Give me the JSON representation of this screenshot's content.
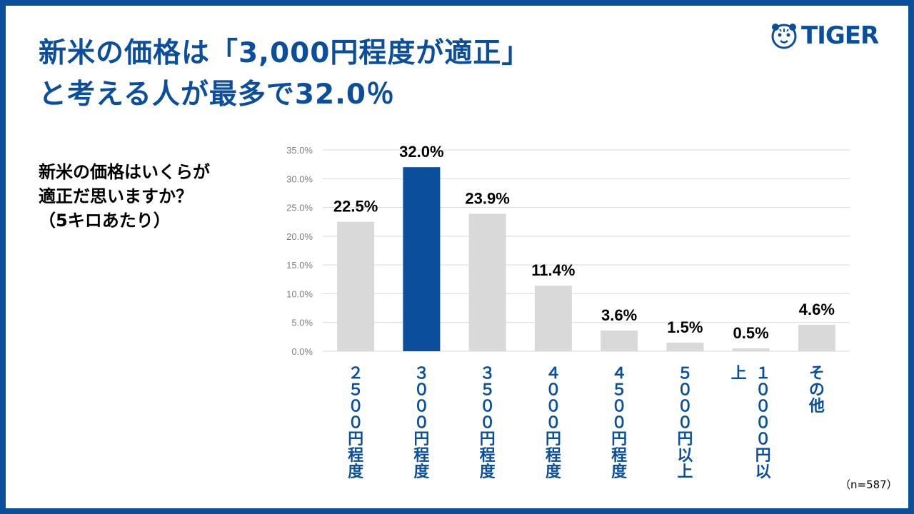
{
  "title": {
    "line1": "新米の価格は「3,000円程度が適正」",
    "line2": "と考える人が最多で32.0％"
  },
  "logo": {
    "text": "TIGER",
    "icon": "tiger-head-icon"
  },
  "question": {
    "line1": "新米の価格はいくらが",
    "line2": "適正だ思いますか？",
    "line3": "（5キロあたり）"
  },
  "sample_note": "（n=587）",
  "colors": {
    "brand": "#0b4f9c",
    "bar_default": "#d9d9d9",
    "bar_highlight": "#0b4f9c",
    "grid": "#d9d9d9",
    "tick_text": "#7f7f7f"
  },
  "chart_data": {
    "type": "bar",
    "categories": [
      "２５００円程度",
      "３０００円程度",
      "３５００円程度",
      "４０００円程度",
      "４５００円程度",
      "５０００円以上",
      "１００００円以上",
      "その他"
    ],
    "values": [
      22.5,
      32.0,
      23.9,
      11.4,
      3.6,
      1.5,
      0.5,
      4.6
    ],
    "value_labels": [
      "22.5%",
      "32.0%",
      "23.9%",
      "11.4%",
      "3.6%",
      "1.5%",
      "0.5%",
      "4.6%"
    ],
    "highlight_index": 1,
    "y_ticks": [
      "0.0%",
      "5.0%",
      "10.0%",
      "15.0%",
      "20.0%",
      "25.0%",
      "30.0%",
      "35.0%"
    ],
    "ylim": [
      0,
      35
    ],
    "grid": true,
    "legend": "none"
  }
}
